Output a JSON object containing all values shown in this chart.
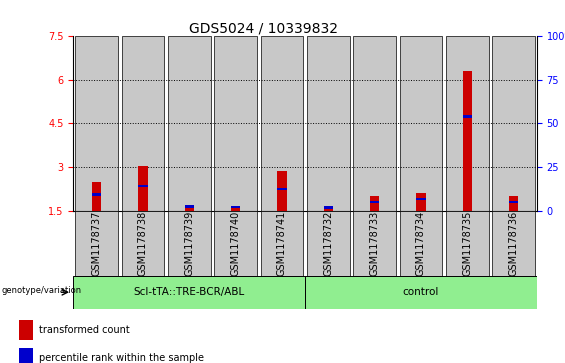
{
  "title": "GDS5024 / 10339832",
  "samples": [
    "GSM1178737",
    "GSM1178738",
    "GSM1178739",
    "GSM1178740",
    "GSM1178741",
    "GSM1178732",
    "GSM1178733",
    "GSM1178734",
    "GSM1178735",
    "GSM1178736"
  ],
  "red_values": [
    2.5,
    3.05,
    1.65,
    1.65,
    2.85,
    1.6,
    2.0,
    2.1,
    6.3,
    2.0
  ],
  "blue_values": [
    2.0,
    2.3,
    1.6,
    1.58,
    2.2,
    1.55,
    1.75,
    1.85,
    4.7,
    1.75
  ],
  "ylim_left": [
    1.5,
    7.5
  ],
  "ylim_right": [
    0,
    100
  ],
  "yticks_left": [
    1.5,
    3.0,
    4.5,
    6.0,
    7.5
  ],
  "ytick_labels_left": [
    "1.5",
    "3",
    "4.5",
    "6",
    "7.5"
  ],
  "yticks_right": [
    0,
    25,
    50,
    75,
    100
  ],
  "ytick_labels_right": [
    "0",
    "25",
    "50",
    "75",
    "100%"
  ],
  "grid_values": [
    3.0,
    4.5,
    6.0
  ],
  "group1_label": "Scl-tTA::TRE-BCR/ABL",
  "group2_label": "control",
  "group1_color": "#90EE90",
  "group2_color": "#90EE90",
  "bar_bg_color": "#C8C8C8",
  "genotype_label": "genotype/variation",
  "legend_red": "transformed count",
  "legend_blue": "percentile rank within the sample",
  "red_color": "#CC0000",
  "blue_color": "#0000CC",
  "title_fontsize": 10,
  "tick_fontsize": 7,
  "label_fontsize": 7.5
}
